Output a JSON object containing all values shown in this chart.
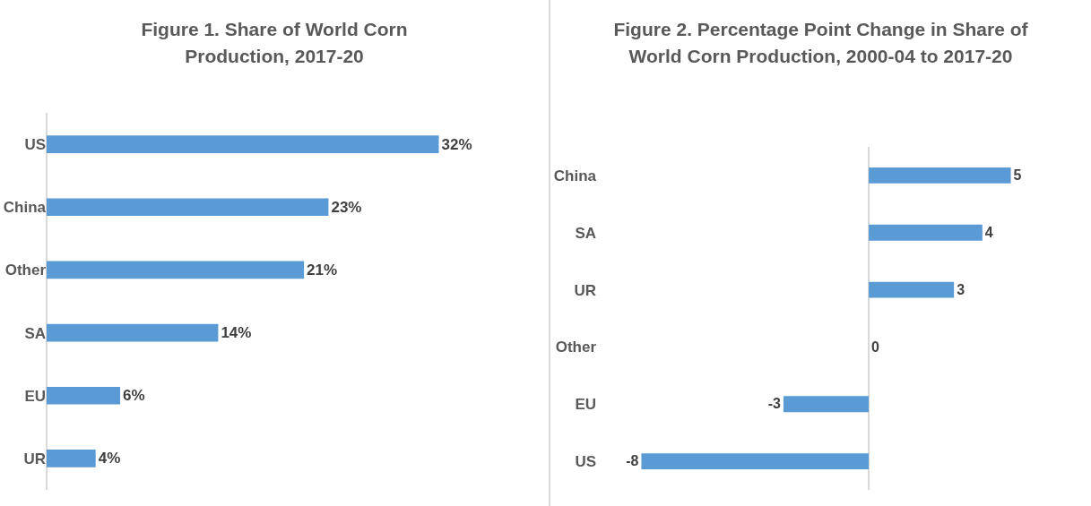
{
  "chart_data": [
    {
      "type": "bar",
      "orientation": "horizontal",
      "title": "Figure 1.  Share of World Corn Production, 2017-20",
      "categories": [
        "US",
        "China",
        "Other",
        "SA",
        "EU",
        "UR"
      ],
      "values": [
        32,
        23,
        21,
        14,
        6,
        4
      ],
      "value_labels": [
        "32%",
        "23%",
        "21%",
        "14%",
        "6%",
        "4%"
      ],
      "color": "#5b9bd5"
    },
    {
      "type": "bar",
      "orientation": "horizontal",
      "title": "Figure 2.  Percentage Point Change in Share of World Corn Production, 2000-04 to 2017-20",
      "categories": [
        "China",
        "SA",
        "UR",
        "Other",
        "EU",
        "US"
      ],
      "values": [
        5,
        4,
        3,
        0,
        -3,
        -8
      ],
      "data_labels": true,
      "color": "#5b9bd5"
    }
  ]
}
